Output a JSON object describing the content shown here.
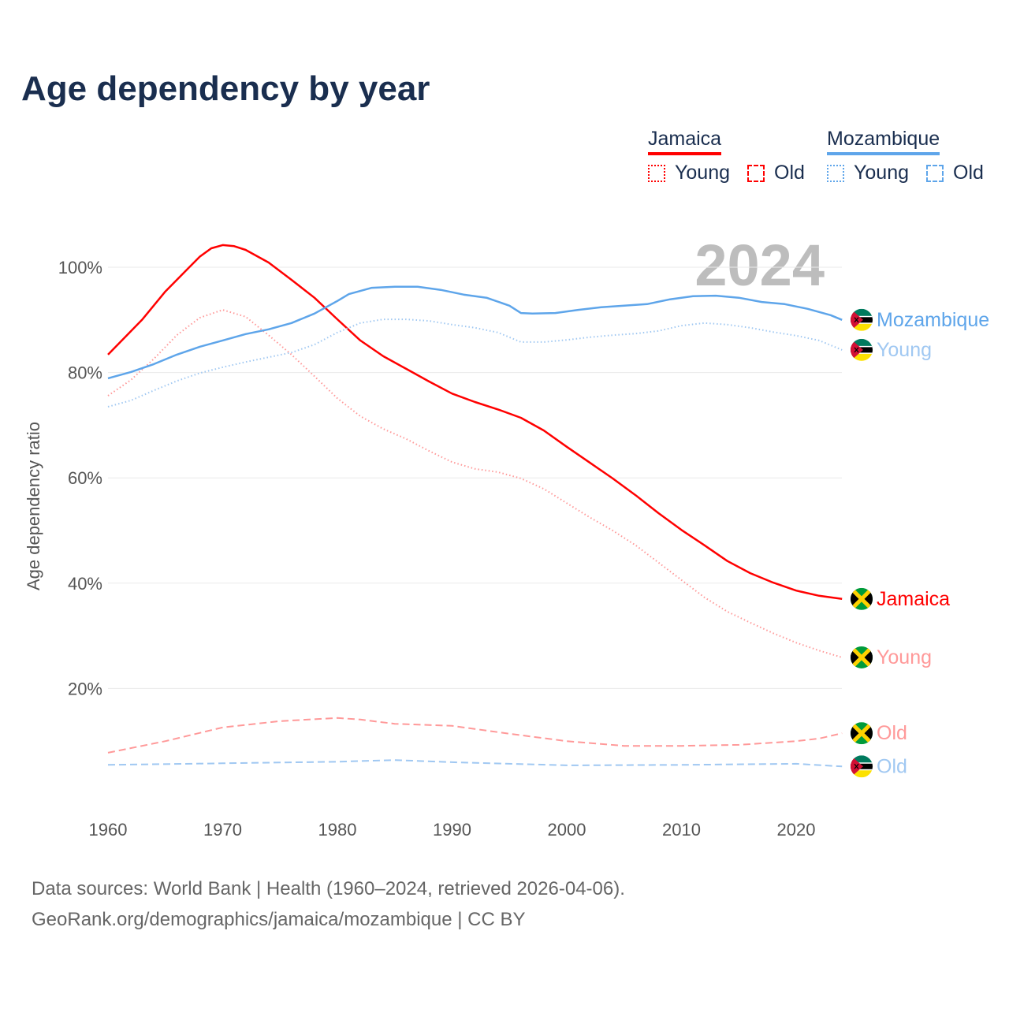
{
  "title": "Age dependency by year",
  "year_watermark": "2024",
  "legend": [
    {
      "country": "Jamaica",
      "color": "#ff0000",
      "light": "#ff9999",
      "young": "Young",
      "old": "Old"
    },
    {
      "country": "Mozambique",
      "color": "#5ea5ea",
      "light": "#a0c8f2",
      "young": "Young",
      "old": "Old"
    }
  ],
  "source_line1": "Data sources: World Bank | Health (1960–2024, retrieved 2026-04-06).",
  "source_line2": "GeoRank.org/demographics/jamaica/mozambique | CC BY",
  "chart_data": {
    "type": "line",
    "title": "Age dependency by year",
    "ylabel": "Age dependency ratio",
    "xlim": [
      1960,
      2024
    ],
    "ylim": [
      0,
      105
    ],
    "x_ticks": [
      "1960",
      "1970",
      "1980",
      "1990",
      "2000",
      "2010",
      "2020"
    ],
    "y_ticks": [
      "20%",
      "40%",
      "60%",
      "80%",
      "100%"
    ],
    "y_tick_values": [
      20,
      40,
      60,
      80,
      100
    ],
    "x_tick_values": [
      1960,
      1970,
      1980,
      1990,
      2000,
      2010,
      2020
    ],
    "grid": true,
    "series": [
      {
        "name": "Jamaica",
        "label": "Jamaica",
        "country": "jamaica",
        "style": "solid",
        "color": "#ff0000",
        "points": [
          [
            1960,
            83.4
          ],
          [
            1963,
            90.1
          ],
          [
            1965,
            95.4
          ],
          [
            1967,
            99.8
          ],
          [
            1968,
            102
          ],
          [
            1969,
            103.6
          ],
          [
            1970,
            104.2
          ],
          [
            1971,
            104
          ],
          [
            1972,
            103.3
          ],
          [
            1974,
            100.9
          ],
          [
            1976,
            97.6
          ],
          [
            1978,
            94.2
          ],
          [
            1980,
            90.1
          ],
          [
            1982,
            86.1
          ],
          [
            1984,
            83.1
          ],
          [
            1986,
            80.7
          ],
          [
            1988,
            78.3
          ],
          [
            1990,
            76
          ],
          [
            1992,
            74.4
          ],
          [
            1994,
            73
          ],
          [
            1996,
            71.4
          ],
          [
            1998,
            69
          ],
          [
            2000,
            65.9
          ],
          [
            2002,
            62.9
          ],
          [
            2004,
            59.9
          ],
          [
            2006,
            56.7
          ],
          [
            2008,
            53.3
          ],
          [
            2010,
            50.1
          ],
          [
            2012,
            47.2
          ],
          [
            2014,
            44.2
          ],
          [
            2016,
            41.9
          ],
          [
            2018,
            40.1
          ],
          [
            2020,
            38.6
          ],
          [
            2022,
            37.6
          ],
          [
            2024,
            37
          ]
        ]
      },
      {
        "name": "Jamaica Young",
        "label": "Young",
        "country": "jamaica",
        "style": "dotted",
        "color": "#ff9999",
        "points": [
          [
            1960,
            75.6
          ],
          [
            1962,
            78.6
          ],
          [
            1964,
            82.6
          ],
          [
            1966,
            87.1
          ],
          [
            1968,
            90.4
          ],
          [
            1970,
            91.9
          ],
          [
            1972,
            90.6
          ],
          [
            1974,
            87.1
          ],
          [
            1976,
            83.4
          ],
          [
            1978,
            79.3
          ],
          [
            1980,
            75.1
          ],
          [
            1982,
            71.7
          ],
          [
            1984,
            69.3
          ],
          [
            1986,
            67.4
          ],
          [
            1988,
            65.1
          ],
          [
            1990,
            63
          ],
          [
            1992,
            61.7
          ],
          [
            1994,
            61.1
          ],
          [
            1996,
            59.9
          ],
          [
            1998,
            57.9
          ],
          [
            2000,
            55.2
          ],
          [
            2002,
            52.5
          ],
          [
            2004,
            50
          ],
          [
            2006,
            47.2
          ],
          [
            2008,
            43.9
          ],
          [
            2010,
            40.6
          ],
          [
            2012,
            37.3
          ],
          [
            2014,
            34.6
          ],
          [
            2016,
            32.5
          ],
          [
            2018,
            30.5
          ],
          [
            2020,
            28.7
          ],
          [
            2022,
            27.2
          ],
          [
            2024,
            25.9
          ]
        ]
      },
      {
        "name": "Jamaica Old",
        "label": "Old",
        "country": "jamaica",
        "style": "dashed",
        "color": "#ff9999",
        "points": [
          [
            1960,
            7.8
          ],
          [
            1965,
            10
          ],
          [
            1970,
            12.6
          ],
          [
            1975,
            13.8
          ],
          [
            1980,
            14.4
          ],
          [
            1982,
            14.1
          ],
          [
            1985,
            13.3
          ],
          [
            1990,
            12.9
          ],
          [
            1995,
            11.4
          ],
          [
            2000,
            10
          ],
          [
            2005,
            9.1
          ],
          [
            2010,
            9.1
          ],
          [
            2015,
            9.3
          ],
          [
            2020,
            10
          ],
          [
            2022,
            10.5
          ],
          [
            2024,
            11.5
          ]
        ]
      },
      {
        "name": "Mozambique",
        "label": "Mozambique",
        "country": "mozambique",
        "style": "solid",
        "color": "#5ea5ea",
        "points": [
          [
            1960,
            78.9
          ],
          [
            1962,
            80.1
          ],
          [
            1964,
            81.6
          ],
          [
            1966,
            83.4
          ],
          [
            1968,
            84.9
          ],
          [
            1970,
            86.1
          ],
          [
            1972,
            87.3
          ],
          [
            1974,
            88.2
          ],
          [
            1976,
            89.4
          ],
          [
            1978,
            91.2
          ],
          [
            1980,
            93.6
          ],
          [
            1981,
            94.9
          ],
          [
            1983,
            96.1
          ],
          [
            1985,
            96.3
          ],
          [
            1987,
            96.3
          ],
          [
            1989,
            95.7
          ],
          [
            1991,
            94.8
          ],
          [
            1993,
            94.2
          ],
          [
            1995,
            92.7
          ],
          [
            1996,
            91.3
          ],
          [
            1997,
            91.2
          ],
          [
            1999,
            91.3
          ],
          [
            2001,
            91.9
          ],
          [
            2003,
            92.4
          ],
          [
            2005,
            92.7
          ],
          [
            2007,
            93
          ],
          [
            2009,
            93.9
          ],
          [
            2011,
            94.5
          ],
          [
            2013,
            94.6
          ],
          [
            2015,
            94.2
          ],
          [
            2017,
            93.4
          ],
          [
            2019,
            93
          ],
          [
            2021,
            92.1
          ],
          [
            2023,
            90.9
          ],
          [
            2024,
            90
          ]
        ]
      },
      {
        "name": "Mozambique Young",
        "label": "Young",
        "country": "mozambique",
        "style": "dotted",
        "color": "#a0c8f2",
        "points": [
          [
            1960,
            73.5
          ],
          [
            1962,
            74.7
          ],
          [
            1964,
            76.6
          ],
          [
            1966,
            78.4
          ],
          [
            1968,
            79.9
          ],
          [
            1970,
            81
          ],
          [
            1972,
            82
          ],
          [
            1974,
            82.9
          ],
          [
            1976,
            83.8
          ],
          [
            1978,
            85.3
          ],
          [
            1980,
            87.6
          ],
          [
            1982,
            89.4
          ],
          [
            1984,
            90.1
          ],
          [
            1986,
            90.1
          ],
          [
            1988,
            89.8
          ],
          [
            1990,
            89.1
          ],
          [
            1992,
            88.5
          ],
          [
            1994,
            87.6
          ],
          [
            1996,
            85.8
          ],
          [
            1998,
            85.8
          ],
          [
            2000,
            86.2
          ],
          [
            2002,
            86.7
          ],
          [
            2004,
            87.1
          ],
          [
            2006,
            87.4
          ],
          [
            2008,
            87.9
          ],
          [
            2010,
            88.9
          ],
          [
            2012,
            89.4
          ],
          [
            2014,
            89.1
          ],
          [
            2016,
            88.5
          ],
          [
            2018,
            87.7
          ],
          [
            2020,
            87
          ],
          [
            2022,
            86.1
          ],
          [
            2024,
            84.3
          ]
        ]
      },
      {
        "name": "Mozambique Old",
        "label": "Old",
        "country": "mozambique",
        "style": "dashed",
        "color": "#a0c8f2",
        "points": [
          [
            1960,
            5.5
          ],
          [
            1970,
            5.8
          ],
          [
            1980,
            6.1
          ],
          [
            1985,
            6.4
          ],
          [
            1990,
            6
          ],
          [
            2000,
            5.4
          ],
          [
            2010,
            5.5
          ],
          [
            2020,
            5.7
          ],
          [
            2024,
            5.2
          ]
        ]
      }
    ]
  }
}
